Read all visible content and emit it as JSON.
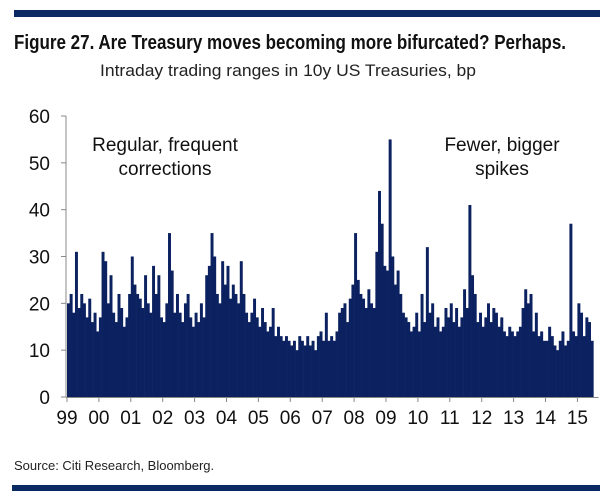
{
  "colors": {
    "bar": "#0b2160",
    "rule": "#0b2a63",
    "axis": "#888888"
  },
  "chart_data": {
    "type": "bar",
    "title": "Figure 27. Are Treasury moves becoming more bifurcated? Perhaps.",
    "subtitle": "Intraday trading ranges in 10y US Treasuries, bp",
    "xlabel": "",
    "ylabel": "",
    "ylim": [
      0,
      60
    ],
    "yticks": [
      "0",
      "10",
      "20",
      "30",
      "40",
      "50",
      "60"
    ],
    "xlim": [
      1999,
      2015.6
    ],
    "xticks": [
      "99",
      "00",
      "01",
      "02",
      "03",
      "04",
      "05",
      "06",
      "07",
      "08",
      "09",
      "10",
      "11",
      "12",
      "13",
      "14",
      "15"
    ],
    "grid": false,
    "start": "1999-01",
    "frequency": "monthly max",
    "values": [
      20,
      22,
      18,
      31,
      19,
      22,
      20,
      17,
      21,
      16,
      18,
      14,
      17,
      31,
      29,
      20,
      26,
      18,
      16,
      22,
      19,
      15,
      17,
      22,
      30,
      24,
      22,
      21,
      19,
      26,
      20,
      18,
      28,
      22,
      26,
      17,
      16,
      20,
      35,
      27,
      18,
      22,
      18,
      16,
      20,
      22,
      17,
      15,
      18,
      16,
      20,
      17,
      26,
      28,
      35,
      30,
      22,
      20,
      29,
      24,
      28,
      21,
      24,
      22,
      20,
      29,
      22,
      18,
      16,
      18,
      21,
      17,
      15,
      19,
      16,
      14,
      15,
      19,
      13,
      15,
      13,
      12,
      13,
      12,
      11,
      12,
      10,
      13,
      12,
      11,
      13,
      11,
      12,
      10,
      13,
      14,
      12,
      18,
      12,
      13,
      12,
      14,
      18,
      19,
      20,
      16,
      21,
      24,
      35,
      25,
      22,
      21,
      19,
      23,
      20,
      19,
      31,
      44,
      37,
      28,
      27,
      55,
      30,
      24,
      27,
      22,
      18,
      17,
      16,
      14,
      15,
      18,
      14,
      22,
      16,
      32,
      18,
      20,
      15,
      17,
      14,
      15,
      19,
      17,
      20,
      16,
      19,
      15,
      17,
      23,
      19,
      41,
      26,
      22,
      16,
      18,
      15,
      17,
      20,
      16,
      19,
      18,
      15,
      17,
      14,
      13,
      15,
      14,
      13,
      14,
      15,
      19,
      23,
      20,
      22,
      14,
      18,
      13,
      14,
      12,
      12,
      15,
      13,
      11,
      10,
      12,
      14,
      11,
      12,
      37,
      14,
      13,
      20,
      18,
      13,
      17,
      16,
      12
    ],
    "annotations": [
      {
        "lines": [
          "Regular, frequent",
          "corrections"
        ]
      },
      {
        "lines": [
          "Fewer, bigger",
          "spikes"
        ]
      }
    ],
    "source": "Source: Citi Research, Bloomberg."
  }
}
